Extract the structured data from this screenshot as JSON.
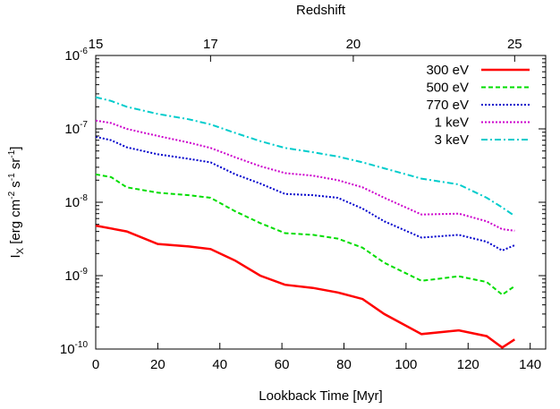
{
  "chart_data": {
    "type": "line",
    "xlabel": "Lookback Time [Myr]",
    "top_xlabel": "Redshift",
    "ylabel": {
      "base": "I",
      "sub": "X",
      "unit_parts": [
        " [erg cm",
        "-2",
        " s",
        "-1",
        " sr",
        "-1",
        "]"
      ]
    },
    "xlim": [
      0,
      145
    ],
    "ylim": [
      1e-10,
      1e-06
    ],
    "yscale": "log",
    "x_ticks": [
      0,
      20,
      40,
      60,
      80,
      100,
      120,
      140
    ],
    "x_tick_labels": [
      "0",
      "20",
      "40",
      "60",
      "80",
      "100",
      "120",
      "140"
    ],
    "y_ticks": [
      {
        "value": 1e-10,
        "base": "10",
        "exp": "-10"
      },
      {
        "value": 1e-09,
        "base": "10",
        "exp": "-9"
      },
      {
        "value": 1e-08,
        "base": "10",
        "exp": "-8"
      },
      {
        "value": 1e-07,
        "base": "10",
        "exp": "-7"
      },
      {
        "value": 1e-06,
        "base": "10",
        "exp": "-6"
      }
    ],
    "top_ticks": [
      {
        "label": "15",
        "x": 0
      },
      {
        "label": "17",
        "x": 37
      },
      {
        "label": "20",
        "x": 83
      },
      {
        "label": "25",
        "x": 135
      }
    ],
    "grid": false,
    "legend_position": "top-right",
    "series": [
      {
        "name": "300 eV",
        "color": "#ff0000",
        "dash": "solid",
        "x": [
          0,
          10,
          20,
          30,
          37,
          45,
          53,
          61,
          70,
          78,
          86,
          93,
          105,
          117,
          126,
          131,
          135
        ],
        "y": [
          4.8e-09,
          4e-09,
          2.7e-09,
          2.5e-09,
          2.3e-09,
          1.6e-09,
          1e-09,
          7.5e-10,
          6.8e-10,
          5.9e-10,
          4.8e-10,
          3e-10,
          1.6e-10,
          1.8e-10,
          1.5e-10,
          1.05e-10,
          1.35e-10
        ]
      },
      {
        "name": "500 eV",
        "color": "#00dd00",
        "dash": "dashed",
        "x": [
          0,
          5,
          10,
          20,
          30,
          37,
          45,
          53,
          61,
          70,
          78,
          86,
          93,
          105,
          117,
          126,
          131,
          135
        ],
        "y": [
          2.4e-08,
          2.2e-08,
          1.6e-08,
          1.35e-08,
          1.25e-08,
          1.15e-08,
          7.5e-09,
          5.2e-09,
          3.8e-09,
          3.6e-09,
          3.2e-09,
          2.4e-09,
          1.5e-09,
          8.5e-10,
          9.8e-10,
          8.2e-10,
          5.5e-10,
          7.2e-10
        ]
      },
      {
        "name": "770 eV",
        "color": "#0000cc",
        "dash": "dotted",
        "x": [
          0,
          5,
          10,
          20,
          30,
          37,
          45,
          53,
          61,
          70,
          78,
          86,
          93,
          105,
          117,
          126,
          131,
          135
        ],
        "y": [
          7.8e-08,
          7e-08,
          5.6e-08,
          4.5e-08,
          3.9e-08,
          3.5e-08,
          2.4e-08,
          1.8e-08,
          1.3e-08,
          1.25e-08,
          1.15e-08,
          8.2e-09,
          5.5e-09,
          3.3e-09,
          3.6e-09,
          2.9e-09,
          2.2e-09,
          2.6e-09
        ]
      },
      {
        "name": "1 keV",
        "color": "#cc00cc",
        "dash": "dotted",
        "x": [
          0,
          5,
          10,
          20,
          30,
          37,
          45,
          53,
          61,
          70,
          78,
          86,
          93,
          105,
          117,
          126,
          131,
          135
        ],
        "y": [
          1.3e-07,
          1.2e-07,
          1e-07,
          8e-08,
          6.5e-08,
          5.5e-08,
          4.1e-08,
          3.1e-08,
          2.5e-08,
          2.3e-08,
          2e-08,
          1.6e-08,
          1.15e-08,
          6.8e-09,
          7e-09,
          5.5e-09,
          4.3e-09,
          4.1e-09
        ]
      },
      {
        "name": "3 keV",
        "color": "#00cccc",
        "dash": "dashdot",
        "x": [
          0,
          5,
          10,
          20,
          30,
          37,
          45,
          53,
          61,
          70,
          78,
          86,
          93,
          105,
          117,
          126,
          131,
          135
        ],
        "y": [
          2.7e-07,
          2.4e-07,
          2e-07,
          1.6e-07,
          1.35e-07,
          1.15e-07,
          8.8e-08,
          6.8e-08,
          5.5e-08,
          4.8e-08,
          4.2e-08,
          3.5e-08,
          2.9e-08,
          2.1e-08,
          1.75e-08,
          1.15e-08,
          8.5e-09,
          6.5e-09
        ]
      }
    ]
  }
}
